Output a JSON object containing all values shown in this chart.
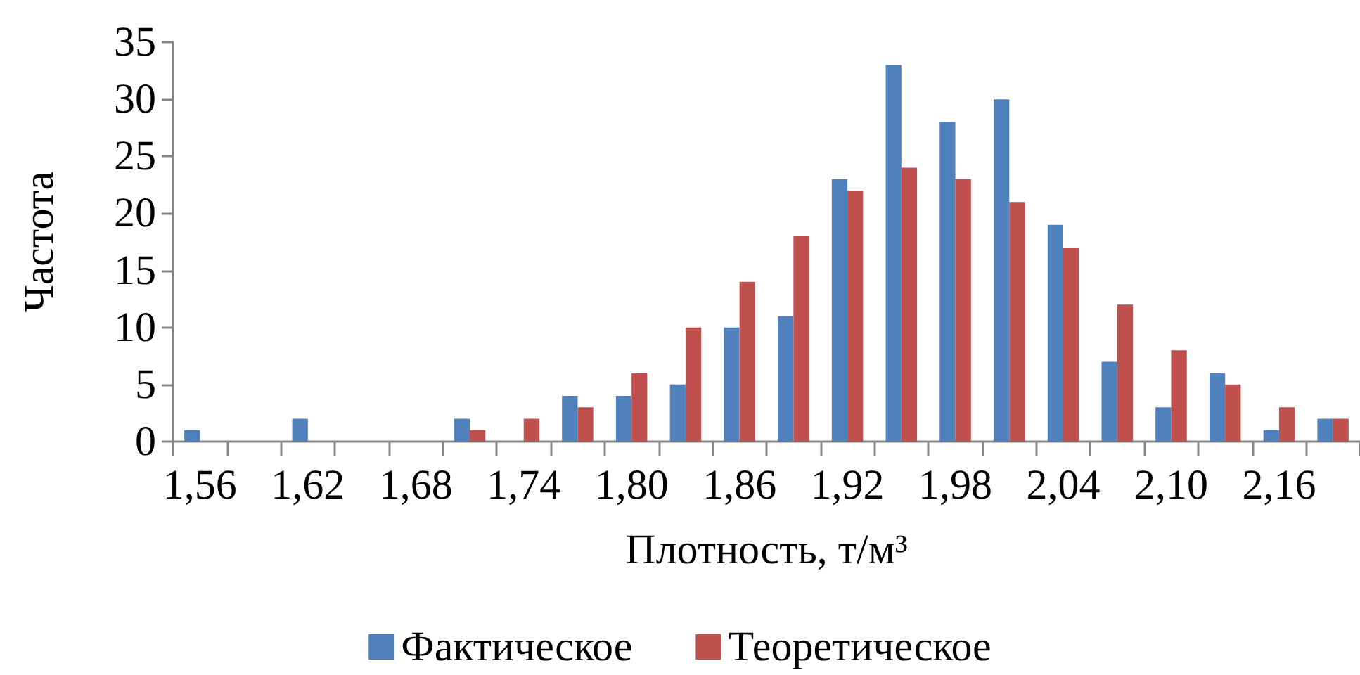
{
  "chart_data": {
    "type": "bar",
    "xlabel": "Плотность, т/м³",
    "ylabel": "Частота",
    "categories": [
      "1,56",
      null,
      "1,62",
      null,
      "1,68",
      null,
      "1,74",
      null,
      "1,80",
      null,
      "1,86",
      null,
      "1,92",
      null,
      "1,98",
      null,
      "2,04",
      null,
      "2,10",
      null,
      "2,16",
      null
    ],
    "series": [
      {
        "name": "Фактическое",
        "color": "#4f81bd",
        "values": [
          1,
          0,
          2,
          0,
          0,
          2,
          0,
          4,
          4,
          5,
          10,
          11,
          23,
          33,
          28,
          30,
          19,
          7,
          3,
          6,
          1,
          2
        ]
      },
      {
        "name": "Теоретическое",
        "color": "#c0504d",
        "values": [
          0,
          0,
          0,
          0,
          0,
          1,
          2,
          3,
          6,
          10,
          14,
          18,
          22,
          24,
          23,
          21,
          17,
          12,
          8,
          5,
          3,
          2
        ]
      }
    ],
    "ylim": [
      0,
      35
    ],
    "yticks": [
      0,
      5,
      10,
      15,
      20,
      25,
      30,
      35
    ],
    "grid": false,
    "legend": "bottom"
  }
}
